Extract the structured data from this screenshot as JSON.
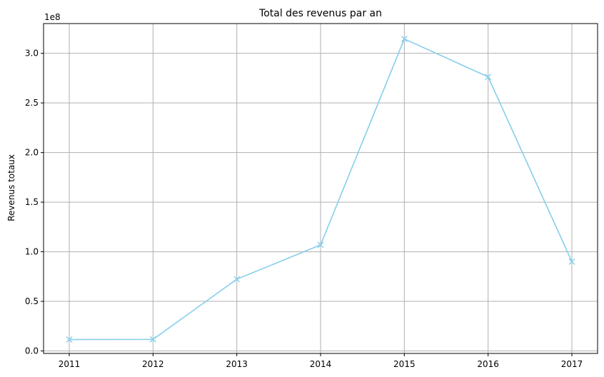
{
  "chart_data": {
    "type": "line",
    "title": "Total des revenus par an",
    "xlabel": "",
    "ylabel": "Revenus totaux",
    "y_offset_label": "1e8",
    "x": [
      "2011",
      "2012",
      "2013",
      "2014",
      "2015",
      "2016",
      "2017"
    ],
    "series": [
      {
        "values": [
          11500000,
          11700000,
          72300000,
          106900000,
          314500000,
          276300000,
          90000000
        ],
        "color": "#87ceeb",
        "marker": "x"
      }
    ],
    "ylim": [
      -2500000,
      330000000
    ],
    "yticks": [
      0,
      50000000,
      100000000,
      150000000,
      200000000,
      250000000,
      300000000
    ],
    "ytick_labels": [
      "0.0",
      "0.5",
      "1.0",
      "1.5",
      "2.0",
      "2.5",
      "3.0"
    ],
    "grid": true
  }
}
